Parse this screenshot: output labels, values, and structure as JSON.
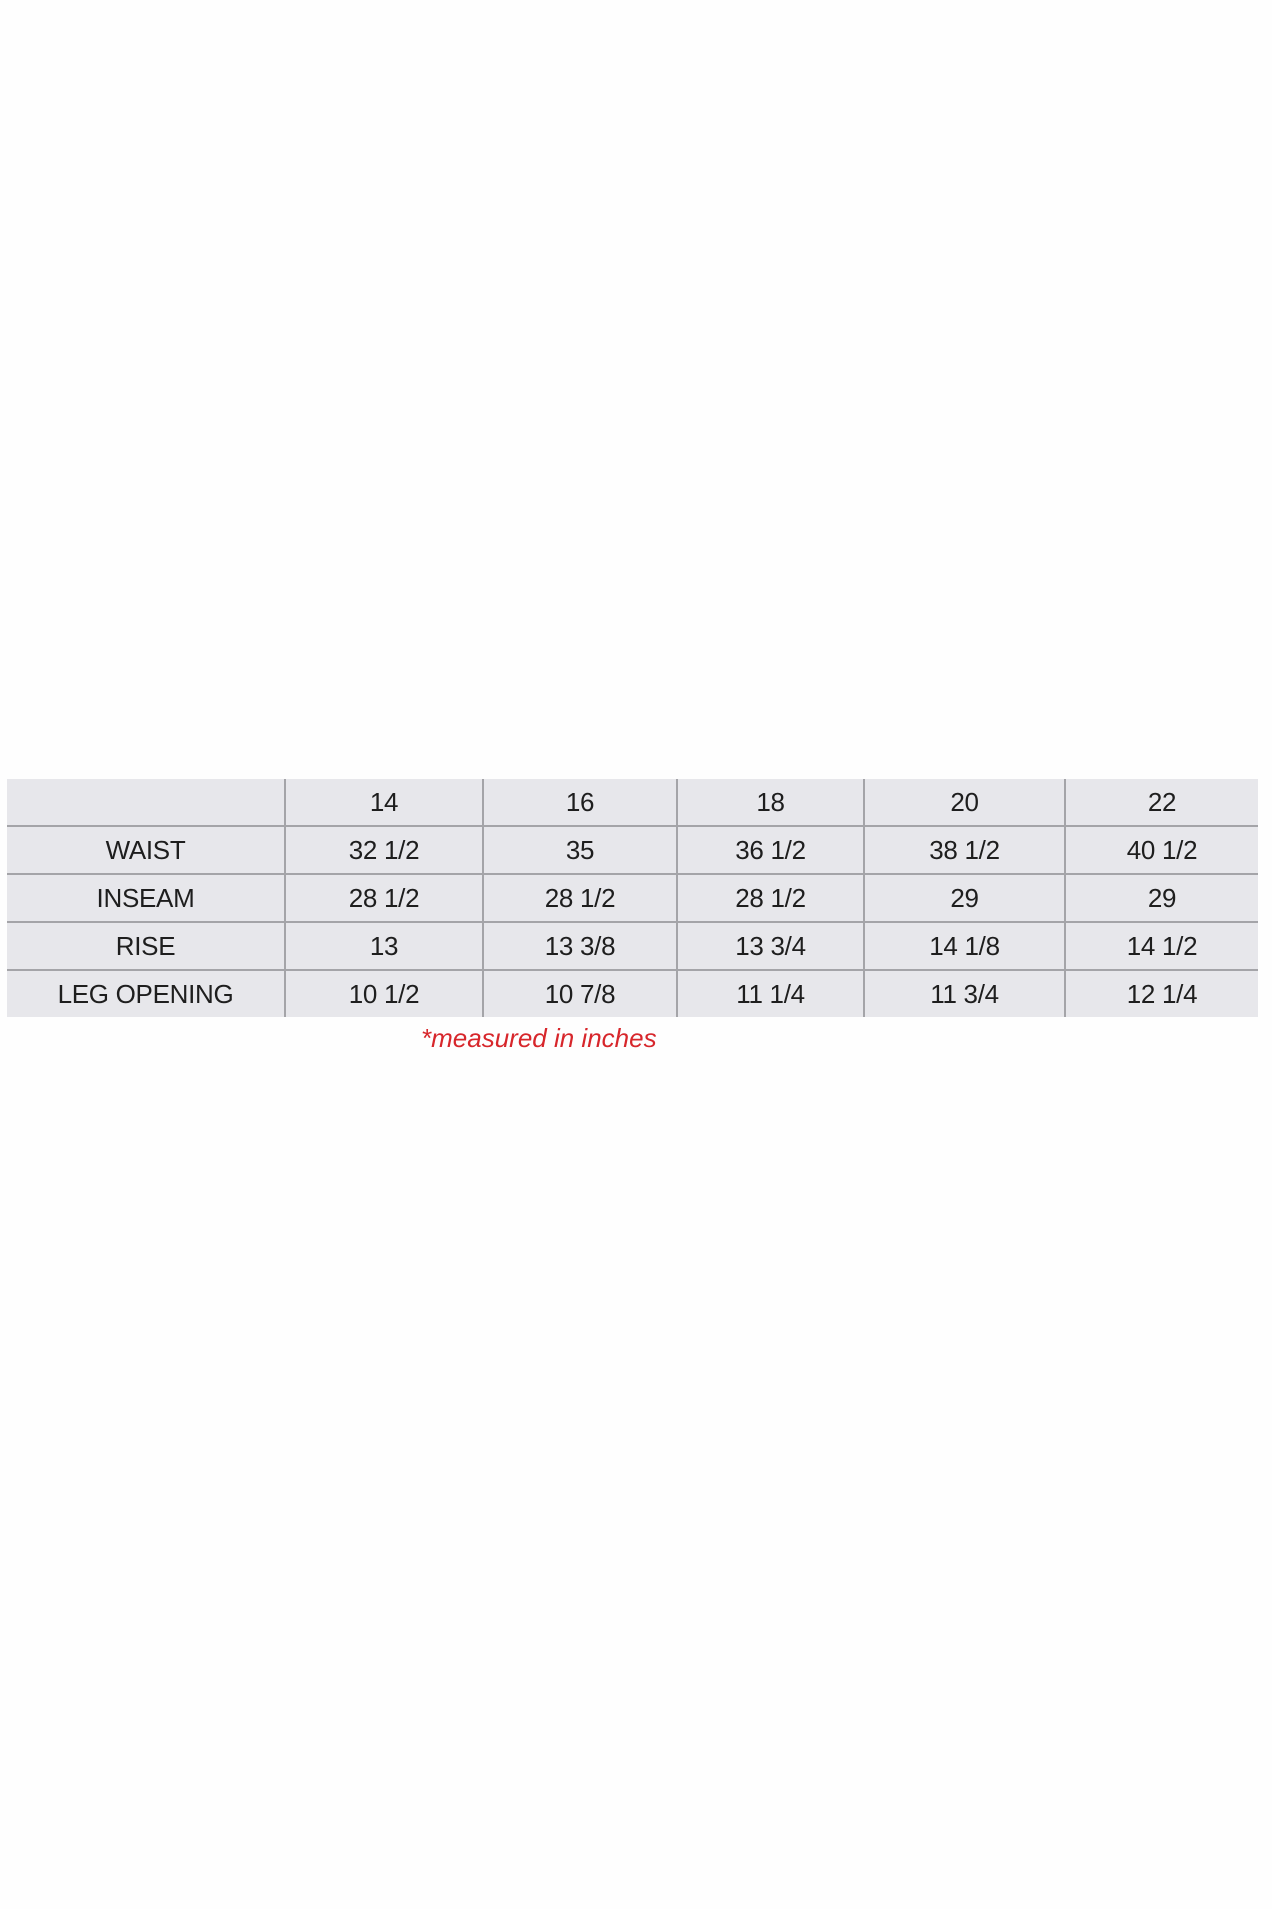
{
  "table": {
    "header": [
      "",
      "14",
      "16",
      "18",
      "20",
      "22"
    ],
    "rows": [
      {
        "label": "WAIST",
        "values": [
          "32 1/2",
          "35",
          "36 1/2",
          "38 1/2",
          "40 1/2"
        ]
      },
      {
        "label": "INSEAM",
        "values": [
          "28 1/2",
          "28 1/2",
          "28 1/2",
          "29",
          "29"
        ]
      },
      {
        "label": "RISE",
        "values": [
          "13",
          "13 3/8",
          "13 3/4",
          "14 1/8",
          "14 1/2"
        ]
      },
      {
        "label": "LEG OPENING",
        "values": [
          "10 1/2",
          "10 7/8",
          "11 1/4",
          "11 3/4",
          "12 1/4"
        ]
      }
    ]
  },
  "note": "*measured in inches",
  "colors": {
    "note": "#d7262b",
    "cell_bg": "#e7e7eb",
    "border": "#a4a4a8"
  }
}
